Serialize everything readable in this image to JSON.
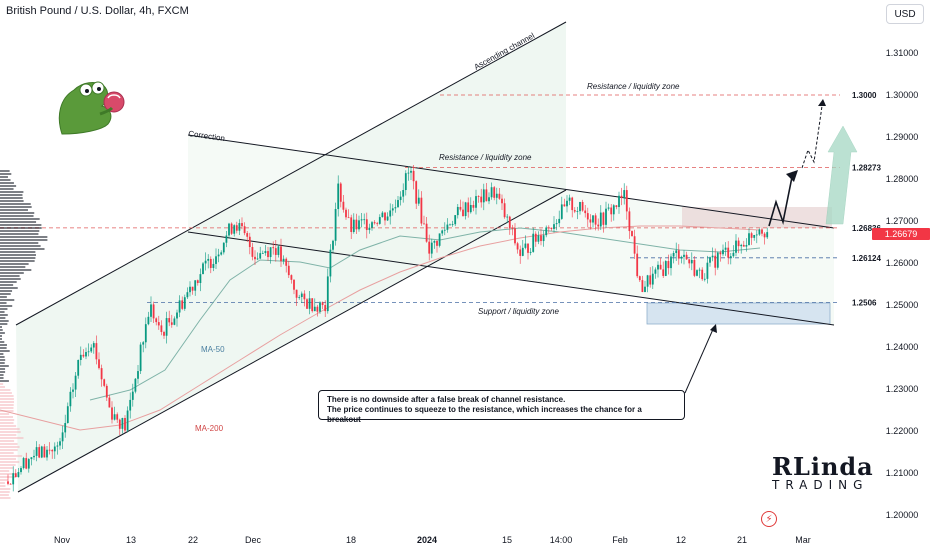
{
  "header": {
    "symbol_title": "British Pound / U.S. Dollar, 4h, FXCM",
    "currency_button": "USD"
  },
  "price_axis": {
    "ticks": [
      "1.31000",
      "1.30000",
      "1.29000",
      "1.28000",
      "1.27000",
      "1.26000",
      "1.25000",
      "1.24000",
      "1.23000",
      "1.22000",
      "1.21000",
      "1.20000"
    ],
    "current_price": "1.26679"
  },
  "time_axis": {
    "labels": [
      "Nov",
      "13",
      "22",
      "Dec",
      "18",
      "2024",
      "15",
      "14:00",
      "Feb",
      "12",
      "21",
      "Mar"
    ]
  },
  "levels": [
    {
      "price": 1.3,
      "label": "1.3000",
      "color": "#e05a5a"
    },
    {
      "price": 1.28273,
      "label": "1.28273",
      "color": "#e05a5a"
    },
    {
      "price": 1.26836,
      "label": "1.26836",
      "color": "#e05a5a"
    },
    {
      "price": 1.26124,
      "label": "1.26124",
      "color": "#4a6fa5"
    },
    {
      "price": 1.2506,
      "label": "1.2506",
      "color": "#4a6fa5"
    }
  ],
  "annotations": {
    "ascending_channel": "Ascending channel",
    "correction": "Correction",
    "resistance_zone_top": "Resistance / liquidity zone",
    "resistance_zone_mid": "Resistance / liquidity zone",
    "support_zone": "Support / liquidity zone",
    "ma50": "MA-50",
    "ma200": "MA-200",
    "note_line1": "There is no downside after a false break of channel resistance.",
    "note_line2": "The price continues to squeeze to the resistance, which increases the chance for a breakout"
  },
  "brand": {
    "line1": "RLinda",
    "line2": "TRADING"
  },
  "colors": {
    "up": "#089981",
    "down": "#f23645",
    "ma50": "#7fb3a8",
    "ma200": "#e8a0a0",
    "channel_fill": "#e8f4ec",
    "support_fill": "#d6e4f0",
    "resistance_fill": "#ead8d8"
  },
  "chart_data": {
    "type": "line",
    "x": [
      "Nov",
      "13",
      "22",
      "Dec",
      "18",
      "2024",
      "15",
      "14:00",
      "Feb",
      "12",
      "21"
    ],
    "series": [
      {
        "name": "",
        "values": [
          1.213,
          1.243,
          1.262,
          1.267,
          1.275,
          1.272,
          1.268,
          1.271,
          1.258,
          1.262,
          1.267
        ]
      }
    ],
    "ylim": [
      1.195,
      1.316
    ]
  }
}
